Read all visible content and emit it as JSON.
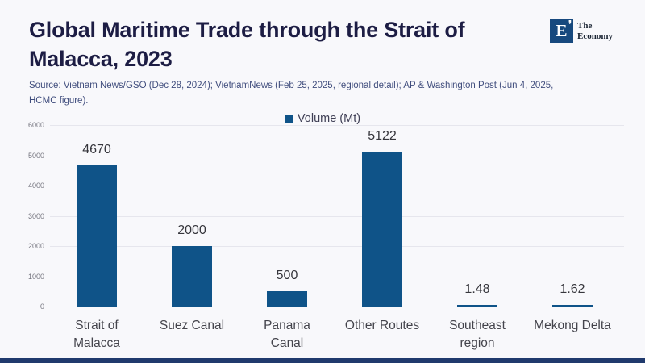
{
  "page": {
    "background": "#f8f8fb",
    "footer_bar_color": "#203a6d"
  },
  "header": {
    "title": "Global Maritime Trade through the Strait of\nMalacca, 2023",
    "source": "Source:  Vietnam News/GSO (Dec 28, 2024); VietnamNews (Feb 25, 2025, regional detail); AP & Washington Post (Jun 4, 2025,\nHCMC figure).",
    "logo": {
      "letter": "E",
      "mark": "❜",
      "name_line1": "The",
      "name_line2": "Economy",
      "box_color": "#17497e"
    }
  },
  "chart_data": {
    "type": "bar",
    "title": "Global Maritime Trade through the Strait of Malacca, 2023",
    "legend": "Volume (Mt)",
    "legend_position": "top-center",
    "categories": [
      "Strait of Malacca",
      "Suez Canal",
      "Panama Canal",
      "Other Routes",
      "Southeast region",
      "Mekong Delta"
    ],
    "category_lines": [
      [
        "Strait of",
        "Malacca"
      ],
      [
        "Suez Canal"
      ],
      [
        "Panama",
        "Canal"
      ],
      [
        "Other Routes"
      ],
      [
        "Southeast",
        "region"
      ],
      [
        "Mekong Delta"
      ]
    ],
    "values": [
      4670,
      2000,
      500,
      5122,
      1.48,
      1.62
    ],
    "value_labels": [
      "4670",
      "2000",
      "500",
      "5122",
      "1.48",
      "1.62"
    ],
    "xlabel": "",
    "ylabel": "",
    "ylim": [
      0,
      6000
    ],
    "yticks": [
      0,
      1000,
      2000,
      3000,
      4000,
      5000,
      6000
    ],
    "grid": true,
    "bar_color": "#0f5388"
  }
}
